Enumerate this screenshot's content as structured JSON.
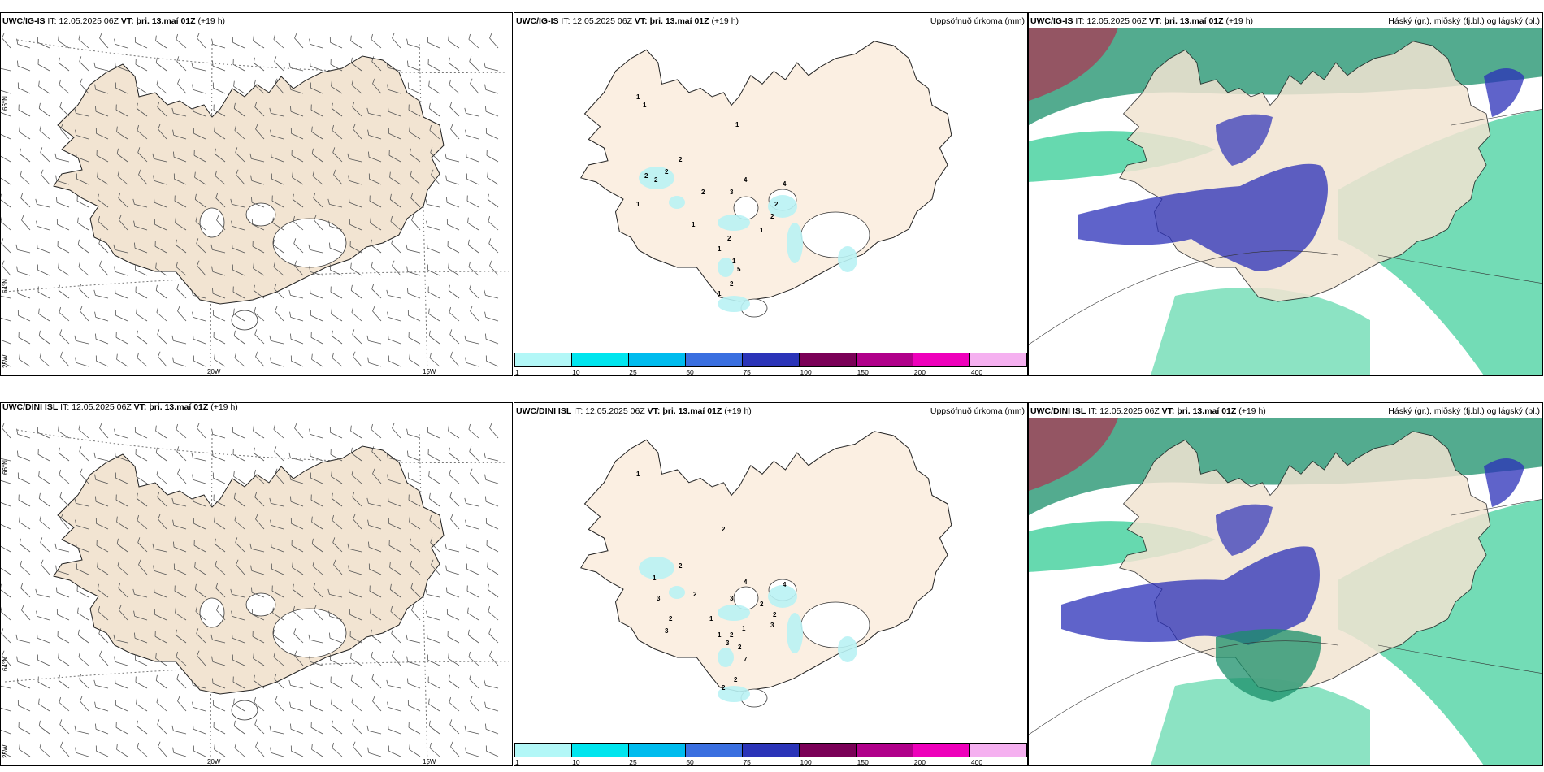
{
  "rows": [
    {
      "model": "UWC/IG-IS",
      "init_label": "IT:",
      "init": "12.05.2025 06Z",
      "valid_label": "VT:",
      "valid": "þri. 13.maí 01Z",
      "lead": "(+19 h)",
      "precip_title": "Uppsöfnuð úrkoma (mm)",
      "cloud_title": "Háský (gr.), miðský (fj.bl.) og lágský (bl.)",
      "precip_values": [
        "1",
        "1",
        "1",
        "2",
        "2",
        "2",
        "2",
        "1",
        "2",
        "1",
        "4",
        "3",
        "4",
        "2",
        "2",
        "1",
        "2",
        "1",
        "5",
        "1",
        "2",
        "1"
      ]
    },
    {
      "model": "UWC/DINI ISL",
      "init_label": "IT:",
      "init": "12.05.2025 06Z",
      "valid_label": "VT:",
      "valid": "þri. 13.maí 01Z",
      "lead": "(+19 h)",
      "lead_wrapped": "h)",
      "precip_title": "Uppsöfnuð úrkoma (mm)",
      "cloud_title": "Háský (gr.), miðský (fj.bl.) og lágský (bl.)",
      "precip_values": [
        "1",
        "2",
        "2",
        "1",
        "3",
        "2",
        "3",
        "2",
        "4",
        "3",
        "4",
        "2",
        "2",
        "3",
        "1",
        "1",
        "2",
        "1",
        "3",
        "2",
        "7",
        "2",
        "2"
      ]
    }
  ],
  "axes": {
    "lat_66": "66°N",
    "lat_64": "64°N",
    "lon_25": "25W",
    "lon_20": "20W",
    "lon_15": "15W"
  },
  "colorbar": {
    "ticks": [
      "1",
      "10",
      "25",
      "50",
      "75",
      "100",
      "150",
      "200",
      "400"
    ],
    "colors": [
      "#b2f7f7",
      "#00e5ee",
      "#00bcee",
      "#3a6fe0",
      "#2b34b8",
      "#7a0057",
      "#b0008a",
      "#ee00bb",
      "#f5b0f0"
    ]
  },
  "colors": {
    "land": "#f2e4d2",
    "land_precip": "#fbefe2",
    "precip_light": "#b9f2f4",
    "high_cloud": "#1a8f6a",
    "mid_cloud": "#2a2fb8",
    "low_cloud": "#00c07a"
  }
}
